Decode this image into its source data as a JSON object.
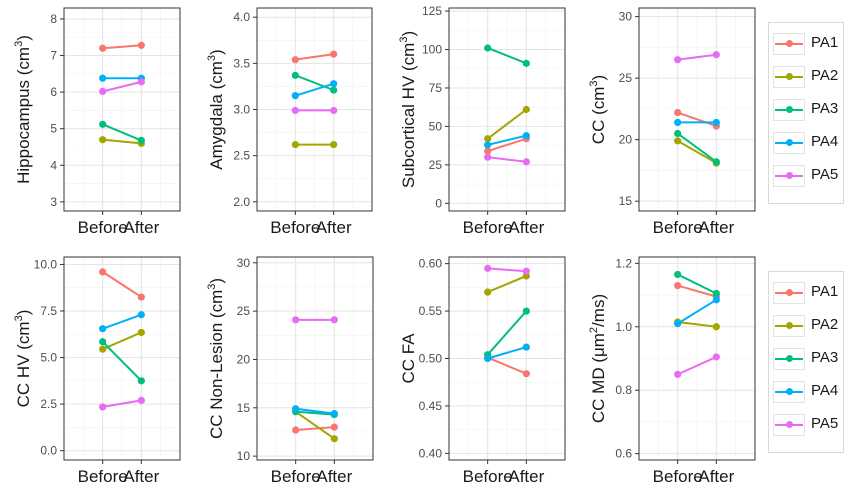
{
  "chart_data": [
    {
      "type": "line",
      "title": "",
      "xlabel": "",
      "ylabel": "Hippocampus (cm³)",
      "categories": [
        "Before",
        "After"
      ],
      "ylim": [
        2.75,
        8.3
      ],
      "yticks": [
        "3",
        "4",
        "5",
        "6",
        "7",
        "8"
      ],
      "ytick_values": [
        3,
        4,
        5,
        6,
        7,
        8
      ],
      "grid": true,
      "series": [
        {
          "name": "PA1",
          "values": [
            7.2,
            7.28
          ]
        },
        {
          "name": "PA2",
          "values": [
            4.7,
            4.6
          ]
        },
        {
          "name": "PA3",
          "values": [
            5.12,
            4.68
          ]
        },
        {
          "name": "PA4",
          "values": [
            6.38,
            6.38
          ]
        },
        {
          "name": "PA5",
          "values": [
            6.02,
            6.28
          ]
        }
      ]
    },
    {
      "type": "line",
      "title": "",
      "xlabel": "",
      "ylabel": "Amygdala (cm³)",
      "categories": [
        "Before",
        "After"
      ],
      "ylim": [
        1.9,
        4.1
      ],
      "yticks": [
        "2.0",
        "2.5",
        "3.0",
        "3.5",
        "4.0"
      ],
      "ytick_values": [
        2.0,
        2.5,
        3.0,
        3.5,
        4.0
      ],
      "grid": true,
      "series": [
        {
          "name": "PA1",
          "values": [
            3.54,
            3.6
          ]
        },
        {
          "name": "PA2",
          "values": [
            2.62,
            2.62
          ]
        },
        {
          "name": "PA3",
          "values": [
            3.37,
            3.21
          ]
        },
        {
          "name": "PA4",
          "values": [
            3.15,
            3.28
          ]
        },
        {
          "name": "PA5",
          "values": [
            2.99,
            2.99
          ]
        }
      ]
    },
    {
      "type": "line",
      "title": "",
      "xlabel": "",
      "ylabel": "Subcortical HV (cm³)",
      "categories": [
        "Before",
        "After"
      ],
      "ylim": [
        -5,
        127
      ],
      "yticks": [
        "0",
        "25",
        "50",
        "75",
        "100",
        "125"
      ],
      "ytick_values": [
        0,
        25,
        50,
        75,
        100,
        125
      ],
      "grid": true,
      "series": [
        {
          "name": "PA1",
          "values": [
            34,
            42
          ]
        },
        {
          "name": "PA2",
          "values": [
            42,
            61
          ]
        },
        {
          "name": "PA3",
          "values": [
            101,
            91
          ]
        },
        {
          "name": "PA4",
          "values": [
            38,
            44
          ]
        },
        {
          "name": "PA5",
          "values": [
            30,
            27
          ]
        }
      ]
    },
    {
      "type": "line",
      "title": "",
      "xlabel": "",
      "ylabel": "CC (cm³)",
      "categories": [
        "Before",
        "After"
      ],
      "ylim": [
        14.2,
        30.7
      ],
      "yticks": [
        "15",
        "20",
        "25",
        "30"
      ],
      "ytick_values": [
        15,
        20,
        25,
        30
      ],
      "grid": true,
      "series": [
        {
          "name": "PA1",
          "values": [
            22.2,
            21.1
          ]
        },
        {
          "name": "PA2",
          "values": [
            19.9,
            18.1
          ]
        },
        {
          "name": "PA3",
          "values": [
            20.5,
            18.2
          ]
        },
        {
          "name": "PA4",
          "values": [
            21.4,
            21.4
          ]
        },
        {
          "name": "PA5",
          "values": [
            26.5,
            26.9
          ]
        }
      ]
    },
    {
      "type": "line",
      "title": "",
      "xlabel": "",
      "ylabel": "CC HV (cm³)",
      "categories": [
        "Before",
        "After"
      ],
      "ylim": [
        -0.5,
        10.4
      ],
      "yticks": [
        "0.0",
        "2.5",
        "5.0",
        "7.5",
        "10.0"
      ],
      "ytick_values": [
        0,
        2.5,
        5,
        7.5,
        10
      ],
      "grid": true,
      "series": [
        {
          "name": "PA1",
          "values": [
            9.6,
            8.25
          ]
        },
        {
          "name": "PA2",
          "values": [
            5.45,
            6.35
          ]
        },
        {
          "name": "PA3",
          "values": [
            5.85,
            3.75
          ]
        },
        {
          "name": "PA4",
          "values": [
            6.55,
            7.3
          ]
        },
        {
          "name": "PA5",
          "values": [
            2.35,
            2.7
          ]
        }
      ]
    },
    {
      "type": "line",
      "title": "",
      "xlabel": "",
      "ylabel": "CC Non-Lesion (cm³)",
      "categories": [
        "Before",
        "After"
      ],
      "ylim": [
        9.6,
        30.6
      ],
      "yticks": [
        "10",
        "15",
        "20",
        "25",
        "30"
      ],
      "ytick_values": [
        10,
        15,
        20,
        25,
        30
      ],
      "grid": true,
      "series": [
        {
          "name": "PA1",
          "values": [
            12.7,
            13.0
          ]
        },
        {
          "name": "PA2",
          "values": [
            14.6,
            11.8
          ]
        },
        {
          "name": "PA3",
          "values": [
            14.6,
            14.3
          ]
        },
        {
          "name": "PA4",
          "values": [
            14.9,
            14.4
          ]
        },
        {
          "name": "PA5",
          "values": [
            24.1,
            24.1
          ]
        }
      ]
    },
    {
      "type": "line",
      "title": "",
      "xlabel": "",
      "ylabel": "CC FA",
      "categories": [
        "Before",
        "After"
      ],
      "ylim": [
        0.393,
        0.607
      ],
      "yticks": [
        "0.40",
        "0.45",
        "0.50",
        "0.55",
        "0.60"
      ],
      "ytick_values": [
        0.4,
        0.45,
        0.5,
        0.55,
        0.6
      ],
      "grid": true,
      "series": [
        {
          "name": "PA1",
          "values": [
            0.501,
            0.484
          ]
        },
        {
          "name": "PA2",
          "values": [
            0.57,
            0.587
          ]
        },
        {
          "name": "PA3",
          "values": [
            0.504,
            0.55
          ]
        },
        {
          "name": "PA4",
          "values": [
            0.5,
            0.512
          ]
        },
        {
          "name": "PA5",
          "values": [
            0.595,
            0.592
          ]
        }
      ]
    },
    {
      "type": "line",
      "title": "",
      "xlabel": "",
      "ylabel": "CC MD (μm²/ms)",
      "categories": [
        "Before",
        "After"
      ],
      "ylim": [
        0.58,
        1.22
      ],
      "yticks": [
        "0.6",
        "0.8",
        "1.0",
        "1.2"
      ],
      "ytick_values": [
        0.6,
        0.8,
        1.0,
        1.2
      ],
      "grid": true,
      "series": [
        {
          "name": "PA1",
          "values": [
            1.13,
            1.095
          ]
        },
        {
          "name": "PA2",
          "values": [
            1.015,
            1.0
          ]
        },
        {
          "name": "PA3",
          "values": [
            1.165,
            1.105
          ]
        },
        {
          "name": "PA4",
          "values": [
            1.01,
            1.085
          ]
        },
        {
          "name": "PA5",
          "values": [
            0.85,
            0.905
          ]
        }
      ]
    }
  ],
  "legend": {
    "position": "right",
    "items": [
      {
        "label": "PA1",
        "color": "#F8766D"
      },
      {
        "label": "PA2",
        "color": "#A3A500"
      },
      {
        "label": "PA3",
        "color": "#00BF7D"
      },
      {
        "label": "PA4",
        "color": "#00B0F6"
      },
      {
        "label": "PA5",
        "color": "#E76BF3"
      }
    ]
  }
}
